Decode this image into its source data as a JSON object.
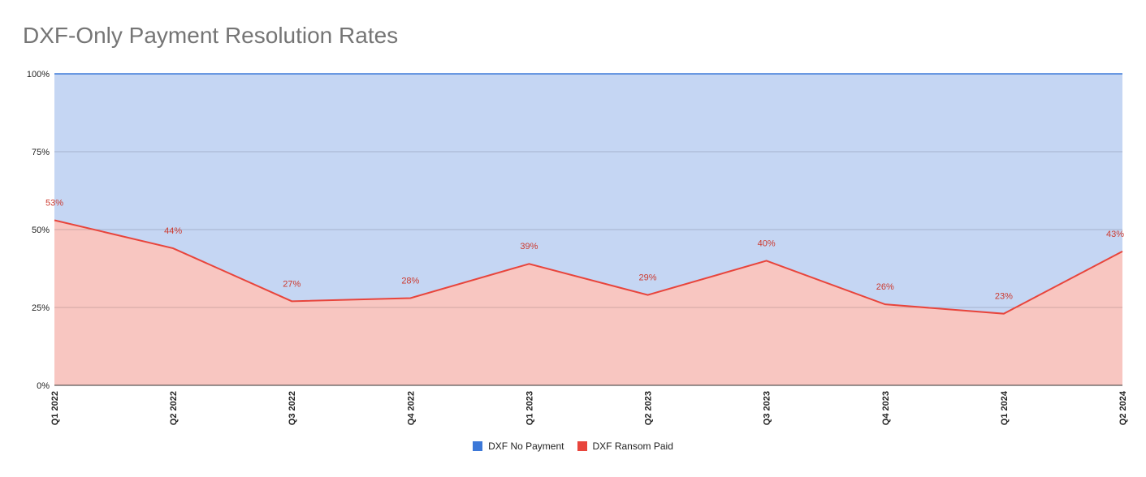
{
  "chart_data": {
    "type": "area",
    "title": "DXF-Only Payment Resolution Rates",
    "stacked": "percent",
    "categories": [
      "Q1 2022",
      "Q2 2022",
      "Q3 2022",
      "Q4 2022",
      "Q1 2023",
      "Q2 2023",
      "Q3 2023",
      "Q4 2023",
      "Q1 2024",
      "Q2 2024"
    ],
    "series": [
      {
        "name": "DXF No Payment",
        "color": "#3c78d8",
        "fill": "#c5d6f3",
        "values": [
          47,
          56,
          73,
          72,
          61,
          71,
          60,
          74,
          77,
          57
        ]
      },
      {
        "name": "DXF Ransom Paid",
        "color": "#e8453c",
        "fill": "#f8c6c1",
        "values": [
          53,
          44,
          27,
          28,
          39,
          29,
          40,
          26,
          23,
          43
        ]
      }
    ],
    "data_labels": [
      "53%",
      "44%",
      "27%",
      "28%",
      "39%",
      "29%",
      "40%",
      "26%",
      "23%",
      "43%"
    ],
    "y_ticks": [
      "0%",
      "25%",
      "50%",
      "75%",
      "100%"
    ],
    "ylim": [
      0,
      100
    ],
    "xlabel": "",
    "ylabel": "",
    "grid": true,
    "legend_position": "bottom"
  }
}
